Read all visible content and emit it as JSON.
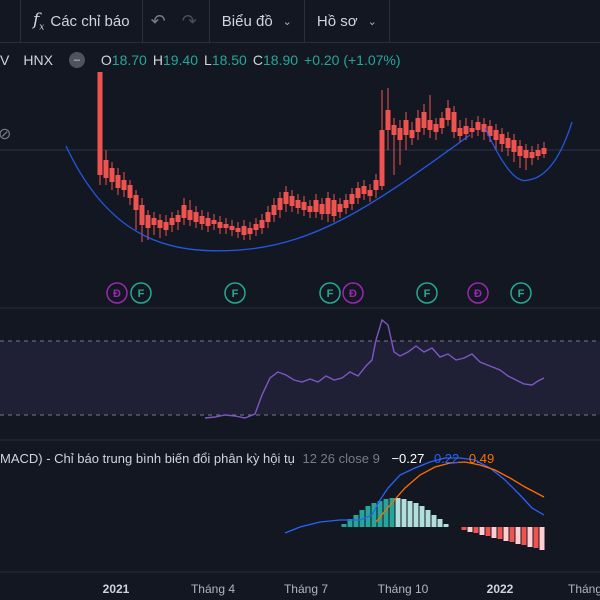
{
  "toolbar": {
    "indicators_label": "Các chỉ báo",
    "charts_label": "Biểu đồ",
    "profile_label": "Hồ sơ"
  },
  "legend": {
    "symbol_prefix": "V",
    "exchange": "HNX",
    "more_icon_glyph": "–",
    "o_label": "O",
    "o_value": "18.70",
    "h_label": "H",
    "h_value": "19.40",
    "l_label": "L",
    "l_value": "18.50",
    "c_label": "C",
    "c_value": "18.90",
    "change": "+0.20 (+1.07%)"
  },
  "events": [
    {
      "letter": "Đ",
      "kind": "dividend"
    },
    {
      "letter": "F",
      "kind": "financial"
    },
    {
      "letter": "F",
      "kind": "financial"
    },
    {
      "letter": "F",
      "kind": "financial"
    },
    {
      "letter": "Đ",
      "kind": "dividend"
    },
    {
      "letter": "F",
      "kind": "financial"
    },
    {
      "letter": "Đ",
      "kind": "dividend"
    },
    {
      "letter": "F",
      "kind": "financial"
    }
  ],
  "macd": {
    "name": "MACD) - Chỉ báo trung bình biến đổi phân kỳ hội tụ",
    "params": "12 26 close 9",
    "hist_value": "−0.27",
    "macd_value": "0.22",
    "signal_value": "0.49"
  },
  "xaxis": {
    "labels": [
      "2021",
      "Tháng 4",
      "Tháng 7",
      "Tháng 10",
      "2022",
      "Tháng"
    ]
  },
  "colors": {
    "up": "#26a69a",
    "down": "#ef5350",
    "curve": "#2962ff",
    "rsi": "#7e57c2",
    "macd_line": "#2962ff",
    "signal_line": "#ff6d00",
    "background": "#131722"
  }
}
